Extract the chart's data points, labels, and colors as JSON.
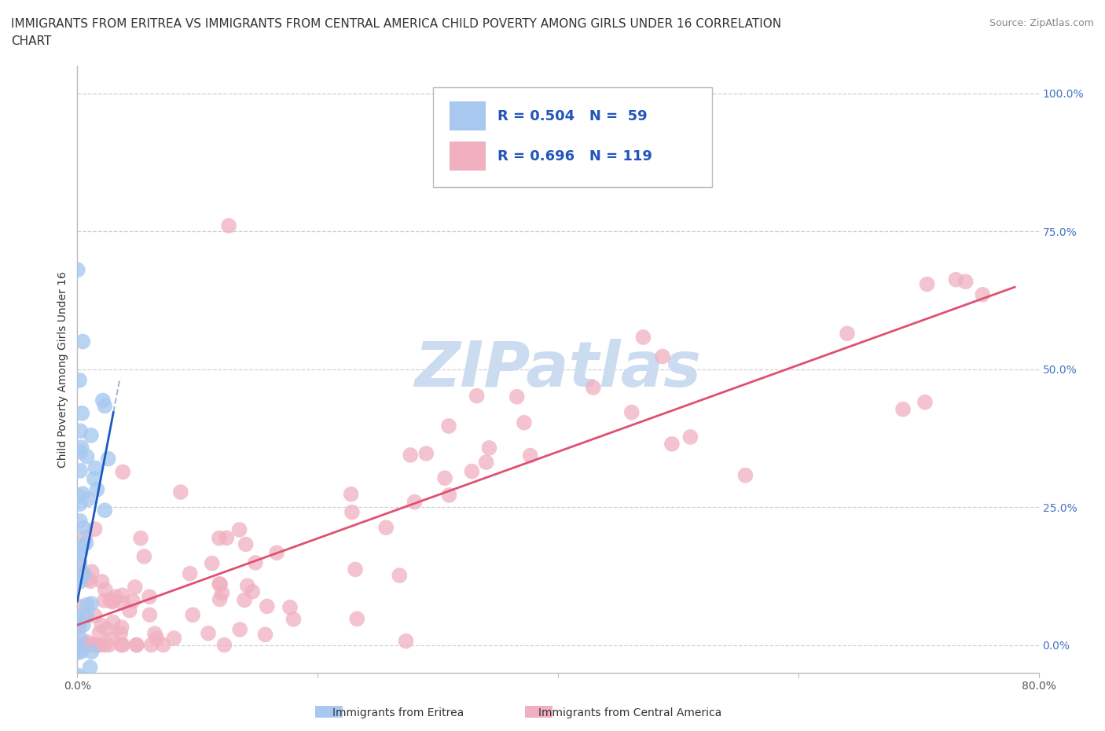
{
  "title_line1": "IMMIGRANTS FROM ERITREA VS IMMIGRANTS FROM CENTRAL AMERICA CHILD POVERTY AMONG GIRLS UNDER 16 CORRELATION",
  "title_line2": "CHART",
  "source_text": "Source: ZipAtlas.com",
  "xlabel_eritrea": "Immigrants from Eritrea",
  "xlabel_central": "Immigrants from Central America",
  "ylabel": "Child Poverty Among Girls Under 16",
  "xlim": [
    0.0,
    0.8
  ],
  "ylim": [
    -0.05,
    1.05
  ],
  "x_ticks": [
    0.0,
    0.2,
    0.4,
    0.6,
    0.8
  ],
  "x_tick_labels": [
    "0.0%",
    "",
    "",
    "",
    "80.0%"
  ],
  "y_ticks": [
    0.0,
    0.25,
    0.5,
    0.75,
    1.0
  ],
  "y_tick_labels": [
    "0.0%",
    "25.0%",
    "50.0%",
    "75.0%",
    "100.0%"
  ],
  "blue_scatter_color": "#a8c8f0",
  "pink_scatter_color": "#f0b0c0",
  "blue_line_color": "#1a5bbf",
  "pink_line_color": "#e05070",
  "dashed_line_color": "#a0b8d8",
  "grid_color": "#d0d0d0",
  "watermark_color": "#ccdcf0",
  "background_color": "#ffffff",
  "legend_r1": "R = 0.504",
  "legend_n1": "N = 59",
  "legend_r2": "R = 0.696",
  "legend_n2": "N = 119",
  "title_fontsize": 11,
  "source_fontsize": 9,
  "legend_fontsize": 13,
  "ytick_fontsize": 10,
  "xtick_fontsize": 10,
  "ylabel_fontsize": 10,
  "xlabel_fontsize": 10
}
